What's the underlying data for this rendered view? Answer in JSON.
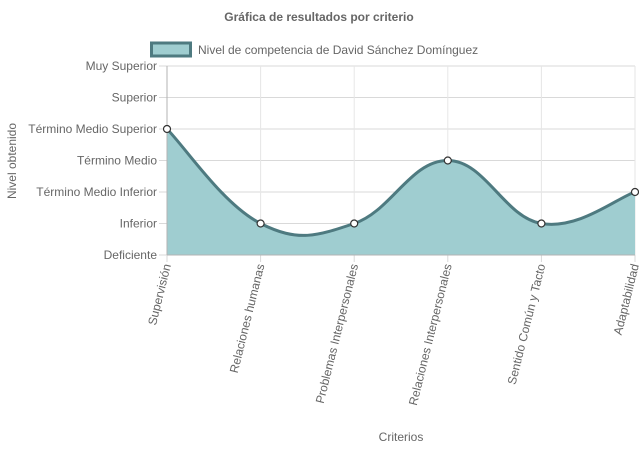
{
  "chart_data": {
    "type": "area",
    "title": "Gráfica de resultados por criterio",
    "xlabel": "Criterios",
    "ylabel": "Nivel obtenido",
    "categories": [
      "Supervisión",
      "Relaciones humanas",
      "Problemas Interpersonales",
      "Relaciones Interpersonales",
      "Sentido Común y Tacto",
      "Adaptabilidad"
    ],
    "y_levels": [
      "Deficiente",
      "Inferior",
      "Término Medio Inferior",
      "Término Medio",
      "Término Medio Superior",
      "Superior",
      "Muy Superior"
    ],
    "ylim": [
      0,
      6
    ],
    "series": [
      {
        "name": "Nivel de competencia de David Sánchez Domínguez",
        "values": [
          4,
          1,
          1,
          3,
          1,
          2
        ],
        "fill_color": "#9fcdd0",
        "line_color": "#4e7a80"
      }
    ],
    "grid": true,
    "legend_position": "top"
  }
}
